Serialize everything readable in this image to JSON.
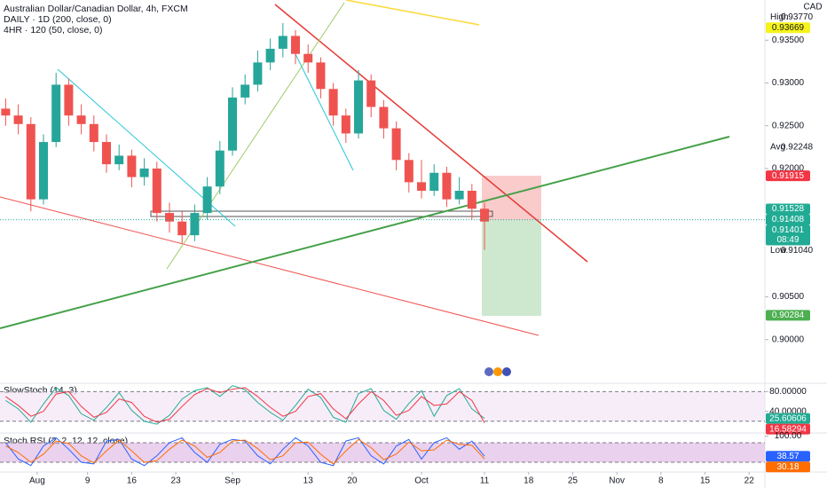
{
  "chart_data": [
    {
      "type": "candlestick",
      "title": "Australian Dollar/Canadian Dollar, 4h, FXCM",
      "indicators": [
        "DAILY · 1D (200, close, 0)",
        "4HR · 120 (50, close, 0)"
      ],
      "currency": "CAD",
      "up_color": "#26a69a",
      "down_color": "#ef5350",
      "x": [
        -5,
        -3,
        -1,
        1,
        3,
        5,
        7,
        9,
        11,
        13,
        15,
        17,
        19,
        21,
        23,
        25,
        27,
        29,
        31,
        33,
        35,
        37,
        39,
        41,
        43,
        45,
        47,
        49,
        51,
        53,
        55,
        57,
        59,
        61,
        63,
        65,
        67,
        69,
        71
      ],
      "open": [
        0.927,
        0.9262,
        0.9252,
        0.9164,
        0.9231,
        0.9298,
        0.9262,
        0.9252,
        0.9231,
        0.9205,
        0.9215,
        0.919,
        0.92,
        0.9148,
        0.9138,
        0.9122,
        0.9148,
        0.9179,
        0.9221,
        0.9283,
        0.9298,
        0.9324,
        0.934,
        0.9355,
        0.9334,
        0.9324,
        0.9293,
        0.9262,
        0.9241,
        0.9303,
        0.9272,
        0.9247,
        0.921,
        0.9184,
        0.9174,
        0.9195,
        0.9164,
        0.9174,
        0.9153
      ],
      "high": [
        0.9282,
        0.9275,
        0.926,
        0.924,
        0.9312,
        0.9305,
        0.9275,
        0.9262,
        0.924,
        0.9228,
        0.9222,
        0.9212,
        0.9208,
        0.916,
        0.915,
        0.9158,
        0.919,
        0.9232,
        0.9295,
        0.931,
        0.9338,
        0.9352,
        0.937,
        0.9362,
        0.9345,
        0.933,
        0.93,
        0.927,
        0.9315,
        0.931,
        0.928,
        0.9255,
        0.9218,
        0.921,
        0.9205,
        0.9202,
        0.919,
        0.9182,
        0.916
      ],
      "low": [
        0.925,
        0.924,
        0.915,
        0.9158,
        0.9225,
        0.925,
        0.924,
        0.922,
        0.9195,
        0.9198,
        0.9178,
        0.918,
        0.9138,
        0.9125,
        0.9112,
        0.9115,
        0.914,
        0.917,
        0.9215,
        0.9275,
        0.929,
        0.9315,
        0.933,
        0.9322,
        0.9312,
        0.9282,
        0.925,
        0.923,
        0.9235,
        0.926,
        0.9235,
        0.9198,
        0.9172,
        0.9165,
        0.9168,
        0.9155,
        0.9158,
        0.914,
        0.9105
      ],
      "close": [
        0.9262,
        0.9252,
        0.9164,
        0.9231,
        0.9298,
        0.9262,
        0.9252,
        0.9231,
        0.9205,
        0.9215,
        0.919,
        0.92,
        0.9148,
        0.9138,
        0.9122,
        0.9148,
        0.9179,
        0.9221,
        0.9283,
        0.9298,
        0.9324,
        0.934,
        0.9355,
        0.9334,
        0.9324,
        0.9293,
        0.9262,
        0.9241,
        0.9303,
        0.9272,
        0.9247,
        0.921,
        0.9184,
        0.9174,
        0.9195,
        0.9164,
        0.9174,
        0.9153,
        0.9138
      ],
      "xlim": [
        -5.9,
        115.5
      ],
      "xticks": [
        {
          "value": 0,
          "label": "Aug"
        },
        {
          "value": 8,
          "label": "9"
        },
        {
          "value": 15,
          "label": "16"
        },
        {
          "value": 22,
          "label": "23"
        },
        {
          "value": 31,
          "label": "Sep"
        },
        {
          "value": 43,
          "label": "13"
        },
        {
          "value": 50,
          "label": "20"
        },
        {
          "value": 61,
          "label": "Oct"
        },
        {
          "value": 71,
          "label": "11"
        },
        {
          "value": 78,
          "label": "18"
        },
        {
          "value": 85,
          "label": "25"
        },
        {
          "value": 92,
          "label": "Nov"
        },
        {
          "value": 99,
          "label": "8"
        },
        {
          "value": 106,
          "label": "15"
        },
        {
          "value": 113,
          "label": "22"
        }
      ],
      "ylim": [
        0.8951,
        0.9397
      ],
      "yticks": [
        {
          "value": 0.935,
          "label": "0.93500"
        },
        {
          "value": 0.93,
          "label": "0.93000"
        },
        {
          "value": 0.925,
          "label": "0.92500"
        },
        {
          "value": 0.92,
          "label": "0.92000"
        },
        {
          "value": 0.905,
          "label": "0.90500"
        },
        {
          "value": 0.9,
          "label": "0.90000"
        }
      ],
      "price_tags": [
        {
          "value": 0.9377,
          "label": "0.93770",
          "caption": "High"
        },
        {
          "value": 0.93669,
          "label": "0.93669",
          "color": "#f6f31c"
        },
        {
          "value": 0.92248,
          "label": "0.92248",
          "caption": "Avg"
        },
        {
          "value": 0.91915,
          "label": "0.91915",
          "color": "#f23645"
        },
        {
          "value": 0.91528,
          "label": "0.91528",
          "color": "#22ab94"
        },
        {
          "value": 0.91408,
          "label": "0.91408",
          "color": "#22ab94"
        },
        {
          "value": 0.91401,
          "label": "0.91401",
          "color": "#22ab94",
          "countdown": "08:49"
        },
        {
          "value": 0.9104,
          "label": "0.91040",
          "caption": "Low"
        },
        {
          "value": 0.90284,
          "label": "0.90284",
          "color": "#4caf50"
        }
      ]
    },
    {
      "type": "line",
      "title": "SlowStoch (14, 3)",
      "band": [
        20,
        80
      ],
      "band_color": "#f3e5f5",
      "ylim": [
        -2,
        95
      ],
      "yticks": [
        {
          "value": 80,
          "label": "80.00000"
        },
        {
          "value": 40,
          "label": "40.00000"
        }
      ],
      "series": [
        {
          "color": "#22ab94",
          "values": [
            62,
            45,
            18,
            55,
            88,
            72,
            35,
            22,
            48,
            78,
            42,
            20,
            14,
            32,
            65,
            82,
            88,
            70,
            92,
            84,
            58,
            38,
            22,
            52,
            85,
            68,
            28,
            18,
            76,
            86,
            42,
            24,
            56,
            82,
            30,
            72,
            86,
            45,
            25.60606
          ]
        },
        {
          "color": "#f23645",
          "values": [
            70,
            52,
            30,
            40,
            75,
            80,
            50,
            28,
            38,
            65,
            58,
            30,
            18,
            24,
            50,
            74,
            86,
            78,
            85,
            88,
            70,
            48,
            30,
            40,
            70,
            76,
            45,
            25,
            55,
            80,
            62,
            32,
            42,
            70,
            52,
            55,
            80,
            62,
            16.58294
          ]
        }
      ]
    },
    {
      "type": "line",
      "title": "Stoch RSI (2, 2, 12, 12, close)",
      "band": [
        20,
        80
      ],
      "band_color": "#e1bee7",
      "ylim": [
        -7,
        107
      ],
      "yticks": [
        {
          "value": 100,
          "label": "100.00"
        }
      ],
      "series": [
        {
          "color": "#2962ff",
          "values": [
            80,
            30,
            10,
            70,
            95,
            60,
            20,
            15,
            85,
            90,
            30,
            10,
            40,
            80,
            95,
            50,
            20,
            75,
            90,
            85,
            40,
            15,
            60,
            95,
            70,
            20,
            10,
            85,
            95,
            40,
            15,
            70,
            90,
            30,
            80,
            95,
            60,
            85,
            38.57
          ]
        },
        {
          "color": "#ff6d00",
          "values": [
            70,
            50,
            20,
            45,
            85,
            78,
            40,
            18,
            55,
            88,
            55,
            20,
            25,
            60,
            88,
            70,
            35,
            50,
            85,
            88,
            62,
            28,
            40,
            80,
            82,
            45,
            15,
            55,
            90,
            65,
            28,
            45,
            82,
            55,
            58,
            88,
            75,
            72,
            30.18
          ]
        }
      ]
    }
  ]
}
